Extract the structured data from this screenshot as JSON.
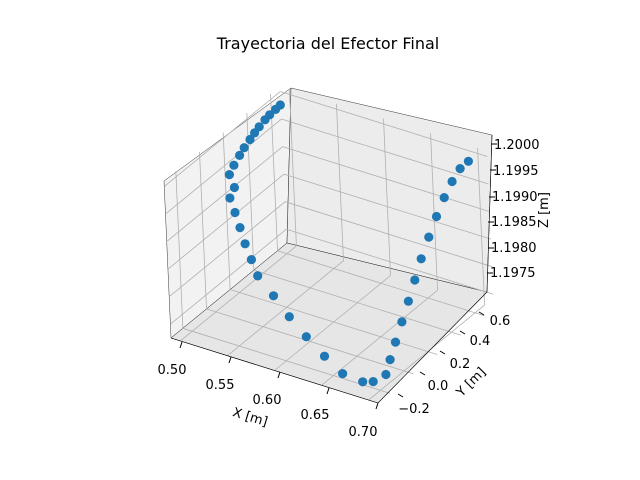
{
  "chart_data": {
    "type": "scatter",
    "title": "Trayectoria del Efector Final",
    "xlabel": "X [m]",
    "ylabel": "Y [m]",
    "zlabel": "Z [m]",
    "x_ticks": [
      "0.50",
      "0.55",
      "0.60",
      "0.65",
      "0.70"
    ],
    "y_ticks": [
      "−0.2",
      "0.0",
      "0.2",
      "0.4",
      "0.6"
    ],
    "z_ticks": [
      "1.1975",
      "1.1980",
      "1.1985",
      "1.1990",
      "1.1995",
      "1.2000"
    ],
    "xlim": [
      0.49,
      0.71
    ],
    "ylim": [
      -0.3,
      0.68
    ],
    "zlim": [
      1.19725,
      1.2001
    ],
    "marker_color": "#1f77b4",
    "grid": true,
    "series": [
      {
        "points": [
          [
            0.5,
            0.6,
            1.19995
          ],
          [
            0.5,
            0.56,
            1.19994
          ],
          [
            0.5,
            0.51,
            1.19993
          ],
          [
            0.5,
            0.47,
            1.19991
          ],
          [
            0.5,
            0.42,
            1.19987
          ],
          [
            0.5,
            0.38,
            1.19983
          ],
          [
            0.5,
            0.34,
            1.19978
          ],
          [
            0.5,
            0.29,
            1.19972
          ],
          [
            0.5,
            0.25,
            1.19965
          ],
          [
            0.5,
            0.2,
            1.19956
          ],
          [
            0.5,
            0.16,
            1.19946
          ],
          [
            0.51,
            0.12,
            1.19935
          ],
          [
            0.51,
            0.08,
            1.19923
          ],
          [
            0.52,
            0.04,
            1.19909
          ],
          [
            0.53,
            0,
            1.19894
          ],
          [
            0.54,
            -0.04,
            1.19877
          ],
          [
            0.55,
            -0.07,
            1.19859
          ],
          [
            0.56,
            -0.1,
            1.1984
          ],
          [
            0.58,
            -0.13,
            1.1982
          ],
          [
            0.6,
            -0.16,
            1.19798
          ],
          [
            0.62,
            -0.18,
            1.19776
          ],
          [
            0.64,
            -0.19,
            1.19753
          ],
          [
            0.66,
            -0.2,
            1.19734
          ],
          [
            0.68,
            -0.19,
            1.19728
          ],
          [
            0.69,
            -0.18,
            1.19732
          ],
          [
            0.7,
            -0.15,
            1.19745
          ],
          [
            0.7,
            -0.11,
            1.19765
          ],
          [
            0.7,
            -0.06,
            1.19788
          ],
          [
            0.7,
            0,
            1.19814
          ],
          [
            0.7,
            0.06,
            1.19841
          ],
          [
            0.7,
            0.12,
            1.19869
          ],
          [
            0.7,
            0.18,
            1.19897
          ],
          [
            0.7,
            0.25,
            1.19924
          ],
          [
            0.7,
            0.32,
            1.19949
          ],
          [
            0.7,
            0.39,
            1.19971
          ],
          [
            0.7,
            0.46,
            1.19988
          ],
          [
            0.7,
            0.53,
            1.19999
          ],
          [
            0.7,
            0.6,
            1.2
          ]
        ]
      }
    ]
  }
}
